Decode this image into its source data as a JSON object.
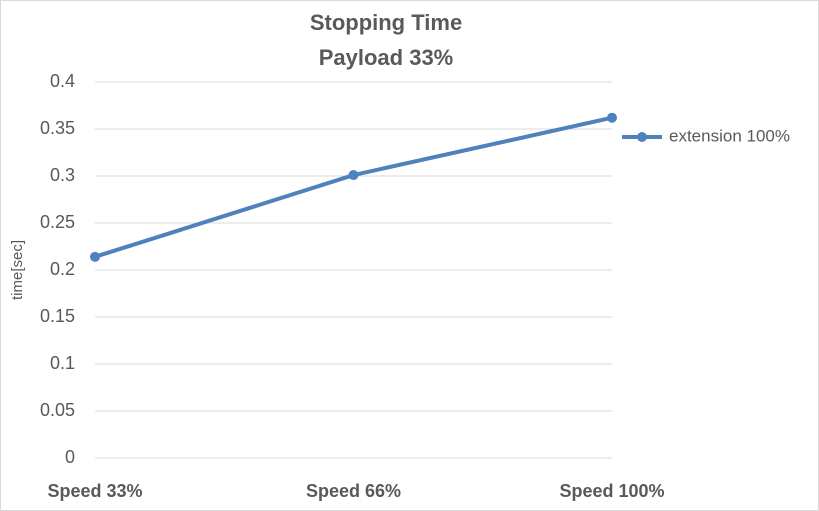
{
  "chart_data": {
    "type": "line",
    "title": "Stopping Time",
    "subtitle": "Payload 33%",
    "y_label": "time[sec]",
    "categories": [
      "Speed 33%",
      "Speed 66%",
      "Speed 100%"
    ],
    "series": [
      {
        "name": "extension 100%",
        "color": "#4f81bd",
        "values": [
          0.214,
          0.301,
          0.362
        ]
      }
    ],
    "ylim": [
      0,
      0.4
    ],
    "yticks": [
      0,
      0.05,
      0.1,
      0.15,
      0.2,
      0.25,
      0.3,
      0.35,
      0.4
    ],
    "grid": true,
    "legend": "right"
  }
}
